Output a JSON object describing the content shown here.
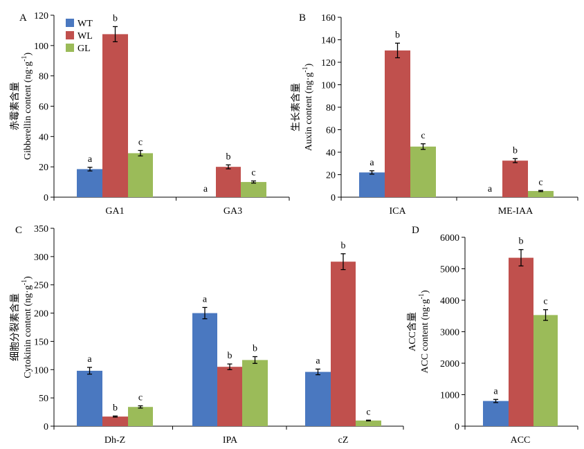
{
  "colors": {
    "WT": "#4a78c0",
    "WL": "#c0504d",
    "GL": "#9bbb59",
    "axis": "#000000"
  },
  "legend": {
    "items": [
      "WT",
      "WL",
      "GL"
    ],
    "placement": "top-left of panel A"
  },
  "chart_data": [
    {
      "panel": "A",
      "type": "bar",
      "ylabel_cn": "赤霉素含量",
      "ylabel_en": "Gibberellin content (ng·g",
      "ylabel_sup": "-1",
      "ylabel_close": ")",
      "ylim": [
        0,
        120
      ],
      "yticks": [
        "0",
        "20",
        "40",
        "60",
        "80",
        "100",
        "120"
      ],
      "categories": [
        "GA1",
        "GA3"
      ],
      "series": [
        {
          "name": "WT",
          "values": [
            18.5,
            0
          ],
          "errors": [
            1.2,
            0
          ],
          "letters": [
            "a",
            "a"
          ]
        },
        {
          "name": "WL",
          "values": [
            107.5,
            20
          ],
          "errors": [
            5,
            1.3
          ],
          "letters": [
            "b",
            "b"
          ]
        },
        {
          "name": "GL",
          "values": [
            29,
            10
          ],
          "errors": [
            1.8,
            0.7
          ],
          "letters": [
            "c",
            "c"
          ]
        }
      ]
    },
    {
      "panel": "B",
      "type": "bar",
      "ylabel_cn": "生长素含量",
      "ylabel_en": "Auxin content (ng·g",
      "ylabel_sup": "-1",
      "ylabel_close": ")",
      "ylim": [
        0,
        160
      ],
      "yticks": [
        "0",
        "20",
        "40",
        "60",
        "80",
        "100",
        "120",
        "140",
        "160"
      ],
      "categories": [
        "ICA",
        "ME-IAA"
      ],
      "series": [
        {
          "name": "WT",
          "values": [
            22,
            0
          ],
          "errors": [
            1.5,
            0
          ],
          "letters": [
            "a",
            "a"
          ]
        },
        {
          "name": "WL",
          "values": [
            130.5,
            32.5
          ],
          "errors": [
            6.5,
            1.8
          ],
          "letters": [
            "b",
            "b"
          ]
        },
        {
          "name": "GL",
          "values": [
            45,
            5.5
          ],
          "errors": [
            2.5,
            0.5
          ],
          "letters": [
            "c",
            "c"
          ]
        }
      ]
    },
    {
      "panel": "C",
      "type": "bar",
      "ylabel_cn": "细胞分裂素含量",
      "ylabel_en": "Cytokinin content (ng·g",
      "ylabel_sup": "-1",
      "ylabel_close": ")",
      "ylim": [
        0,
        350
      ],
      "yticks": [
        "0",
        "50",
        "100",
        "150",
        "200",
        "250",
        "300",
        "350"
      ],
      "categories": [
        "Dh-Z",
        "IPA",
        "cZ"
      ],
      "series": [
        {
          "name": "WT",
          "values": [
            98,
            200,
            96
          ],
          "errors": [
            6,
            10,
            5
          ],
          "letters": [
            "a",
            "a",
            "a"
          ]
        },
        {
          "name": "WL",
          "values": [
            17,
            105,
            291
          ],
          "errors": [
            1,
            5,
            14
          ],
          "letters": [
            "b",
            "b",
            "b"
          ]
        },
        {
          "name": "GL",
          "values": [
            34,
            117,
            10
          ],
          "errors": [
            2,
            6,
            0.7
          ],
          "letters": [
            "c",
            "b",
            "c"
          ]
        }
      ]
    },
    {
      "panel": "D",
      "type": "bar",
      "ylabel_cn": "ACC含量",
      "ylabel_en": "ACC content (ng·g",
      "ylabel_sup": "-1",
      "ylabel_close": ")",
      "ylim": [
        0,
        6000
      ],
      "yticks": [
        "0",
        "1000",
        "2000",
        "3000",
        "4000",
        "5000",
        "6000"
      ],
      "categories": [
        "ACC"
      ],
      "series": [
        {
          "name": "WT",
          "values": [
            800
          ],
          "errors": [
            50
          ],
          "letters": [
            "a"
          ]
        },
        {
          "name": "WL",
          "values": [
            5350
          ],
          "errors": [
            260
          ],
          "letters": [
            "b"
          ]
        },
        {
          "name": "GL",
          "values": [
            3530
          ],
          "errors": [
            170
          ],
          "letters": [
            "c"
          ]
        }
      ]
    }
  ]
}
